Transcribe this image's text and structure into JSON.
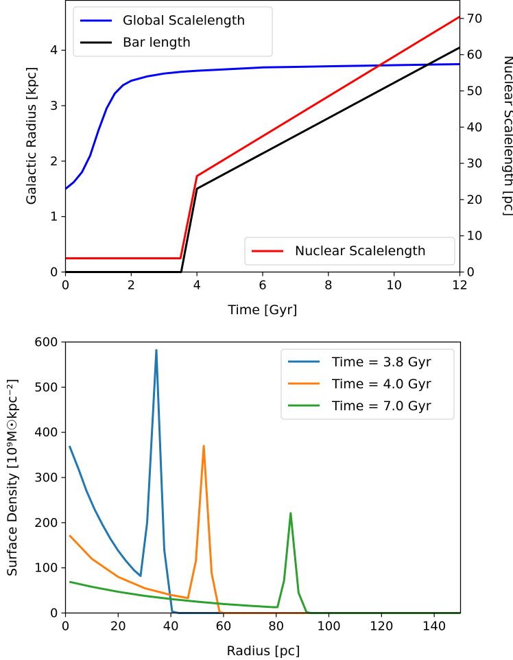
{
  "chart_data": [
    {
      "type": "line",
      "xlabel": "Time [Gyr]",
      "ylabel": "Galactic Radius [kpc]",
      "y2label": "Nuclear Scalelength [pc]",
      "xlim": [
        0,
        12
      ],
      "ylim": [
        0,
        4.9
      ],
      "y2lim": [
        0,
        75
      ],
      "xticks": [
        0,
        2,
        4,
        6,
        8,
        10,
        12
      ],
      "yticks": [
        0,
        1,
        2,
        3,
        4
      ],
      "y2ticks": [
        0,
        10,
        20,
        30,
        40,
        50,
        60,
        70
      ],
      "legends": [
        {
          "position": "upper-left",
          "entries": [
            "Global Scalelength",
            "Bar length"
          ]
        },
        {
          "position": "lower-right",
          "entries": [
            "Nuclear Scalelength"
          ]
        }
      ],
      "series": [
        {
          "name": "Global Scalelength",
          "axis": "left",
          "color": "#0000ff",
          "x": [
            0,
            0.25,
            0.5,
            0.75,
            1.0,
            1.25,
            1.5,
            1.75,
            2.0,
            2.5,
            3.0,
            3.5,
            4.0,
            5.0,
            6.0,
            7.0,
            8.0,
            9.0,
            10.0,
            11.0,
            12.0
          ],
          "values": [
            1.5,
            1.62,
            1.8,
            2.1,
            2.55,
            2.95,
            3.22,
            3.37,
            3.45,
            3.53,
            3.58,
            3.61,
            3.63,
            3.66,
            3.69,
            3.7,
            3.71,
            3.72,
            3.73,
            3.74,
            3.75
          ]
        },
        {
          "name": "Bar length",
          "axis": "right",
          "color": "#000000",
          "x": [
            0,
            3.52,
            4.0,
            12.0
          ],
          "values": [
            0,
            0,
            23,
            62
          ]
        },
        {
          "name": "Nuclear Scalelength",
          "axis": "right",
          "color": "#ff0000",
          "x": [
            0,
            3.5,
            4.0,
            12.0
          ],
          "values": [
            3.8,
            3.8,
            26.5,
            70.5
          ]
        }
      ]
    },
    {
      "type": "line",
      "xlabel": "Radius [pc]",
      "ylabel": "Surface Density [10⁹M☉kpc⁻²]",
      "xlim": [
        0,
        150
      ],
      "ylim": [
        0,
        600
      ],
      "xticks": [
        0,
        20,
        40,
        60,
        80,
        100,
        120,
        140
      ],
      "yticks": [
        0,
        100,
        200,
        300,
        400,
        500,
        600
      ],
      "legend": {
        "position": "upper-right",
        "entries": [
          "Time = 3.8 Gyr",
          "Time = 4.0 Gyr",
          "Time = 7.0 Gyr"
        ]
      },
      "series": [
        {
          "name": "Time = 3.8 Gyr",
          "color": "#1f77b4",
          "x": [
            1.5,
            5,
            8,
            11,
            14,
            17,
            20,
            23,
            26,
            28.5,
            31,
            34.5,
            37.5,
            40.5,
            43,
            150
          ],
          "values": [
            370,
            318,
            270,
            230,
            196,
            165,
            138,
            115,
            95,
            82,
            200,
            582,
            140,
            3,
            0,
            0
          ]
        },
        {
          "name": "Time = 4.0 Gyr",
          "color": "#ff7f0e",
          "x": [
            1.5,
            10,
            20,
            30,
            40,
            46.5,
            49.5,
            52.5,
            55.5,
            58.5,
            60,
            150
          ],
          "values": [
            172,
            120,
            80,
            55,
            40,
            33,
            115,
            370,
            88,
            2,
            0,
            0
          ]
        },
        {
          "name": "Time = 7.0 Gyr",
          "color": "#2ca02c",
          "x": [
            1.5,
            10,
            20,
            30,
            40,
            50,
            60,
            70,
            78.5,
            80.5,
            83,
            85.5,
            88.5,
            91.5,
            93,
            150
          ],
          "values": [
            69,
            58,
            47,
            38,
            31,
            25,
            20,
            16,
            13,
            13,
            72,
            221,
            45,
            2,
            0,
            0
          ]
        }
      ]
    }
  ]
}
